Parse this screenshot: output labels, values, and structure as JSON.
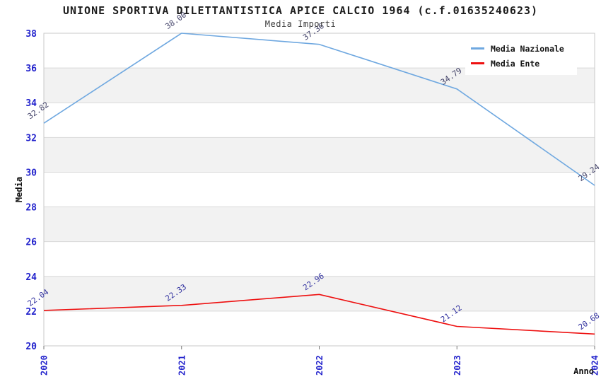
{
  "title": "UNIONE SPORTIVA DILETTANTISTICA APICE CALCIO 1964 (c.f.01635240623)",
  "subtitle": "Media Importi",
  "chart_data": {
    "type": "line",
    "categories": [
      "2020",
      "2021",
      "2022",
      "2023",
      "2024"
    ],
    "series": [
      {
        "name": "Media Nazionale",
        "color": "#6FA8E0",
        "label_color": "#3f3f66",
        "values": [
          32.82,
          38.0,
          37.36,
          34.79,
          29.24
        ],
        "point_labels": [
          "32.82",
          "38.00",
          "37.36",
          "34.79",
          "29.24"
        ]
      },
      {
        "name": "Media Ente",
        "color": "#EE1010",
        "label_color": "#3333a0",
        "values": [
          22.04,
          22.33,
          22.96,
          21.12,
          20.68
        ],
        "point_labels": [
          "22.04",
          "22.33",
          "22.96",
          "21.12",
          "20.68"
        ]
      }
    ],
    "xlabel": "Anno",
    "ylabel": "Media",
    "ylim": [
      20,
      38
    ],
    "yticks": [
      20,
      22,
      24,
      26,
      28,
      30,
      32,
      34,
      36,
      38
    ],
    "legend_position": "top-right",
    "grid": true,
    "band_color": "#f2f2f2",
    "grid_color": "#d9d9d9",
    "frame_color": "#c8c8c8",
    "tick_label_color": "#2222cc",
    "axis_title_color": "#111111"
  }
}
